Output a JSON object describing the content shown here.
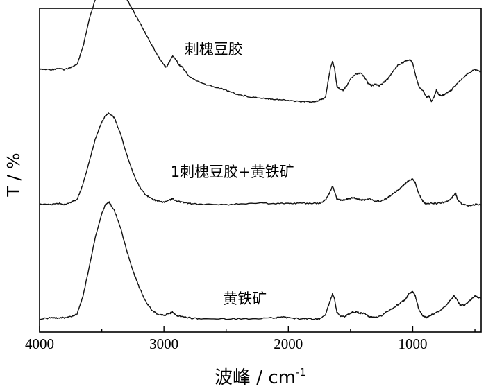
{
  "chart_data": {
    "type": "line",
    "xlabel": "波峰 / cm",
    "xlabel_superscript": "-1",
    "ylabel": "T / %",
    "xlim": [
      4000,
      450
    ],
    "x_reversed": true,
    "xticks": [
      4000,
      3000,
      2000,
      1000
    ],
    "xtick_labels": [
      "4000",
      "3000",
      "2000",
      "1000"
    ],
    "y_tick_labels_shown": false,
    "grid": false,
    "legend": "none",
    "series": [
      {
        "name": "刺槐豆胶",
        "offset": 2.0,
        "points": [
          [
            4000,
            0.18
          ],
          [
            3900,
            0.18
          ],
          [
            3850,
            0.19
          ],
          [
            3800,
            0.18
          ],
          [
            3750,
            0.2
          ],
          [
            3700,
            0.22
          ],
          [
            3650,
            0.38
          ],
          [
            3600,
            0.62
          ],
          [
            3550,
            0.8
          ],
          [
            3500,
            0.94
          ],
          [
            3470,
            1.0
          ],
          [
            3440,
            1.02
          ],
          [
            3400,
            0.98
          ],
          [
            3350,
            0.9
          ],
          [
            3300,
            0.8
          ],
          [
            3250,
            0.7
          ],
          [
            3200,
            0.6
          ],
          [
            3150,
            0.5
          ],
          [
            3100,
            0.4
          ],
          [
            3050,
            0.3
          ],
          [
            3000,
            0.22
          ],
          [
            2980,
            0.2
          ],
          [
            2950,
            0.26
          ],
          [
            2930,
            0.3
          ],
          [
            2900,
            0.26
          ],
          [
            2880,
            0.22
          ],
          [
            2850,
            0.2
          ],
          [
            2800,
            0.12
          ],
          [
            2700,
            0.06
          ],
          [
            2600,
            0.03
          ],
          [
            2500,
            0.0
          ],
          [
            2400,
            -0.04
          ],
          [
            2300,
            -0.06
          ],
          [
            2200,
            -0.07
          ],
          [
            2100,
            -0.08
          ],
          [
            2000,
            -0.09
          ],
          [
            1900,
            -0.1
          ],
          [
            1800,
            -0.1
          ],
          [
            1750,
            -0.09
          ],
          [
            1700,
            -0.06
          ],
          [
            1680,
            0.08
          ],
          [
            1660,
            0.2
          ],
          [
            1645,
            0.25
          ],
          [
            1630,
            0.2
          ],
          [
            1610,
            0.04
          ],
          [
            1590,
            0.01
          ],
          [
            1560,
            0.0
          ],
          [
            1530,
            0.04
          ],
          [
            1500,
            0.1
          ],
          [
            1460,
            0.14
          ],
          [
            1420,
            0.15
          ],
          [
            1390,
            0.12
          ],
          [
            1360,
            0.06
          ],
          [
            1330,
            0.04
          ],
          [
            1300,
            0.05
          ],
          [
            1270,
            0.04
          ],
          [
            1240,
            0.06
          ],
          [
            1200,
            0.1
          ],
          [
            1160,
            0.16
          ],
          [
            1120,
            0.22
          ],
          [
            1080,
            0.24
          ],
          [
            1050,
            0.26
          ],
          [
            1020,
            0.26
          ],
          [
            1000,
            0.24
          ],
          [
            980,
            0.14
          ],
          [
            950,
            0.03
          ],
          [
            920,
            0.0
          ],
          [
            890,
            -0.06
          ],
          [
            870,
            -0.05
          ],
          [
            850,
            -0.1
          ],
          [
            830,
            -0.06
          ],
          [
            810,
            0.0
          ],
          [
            790,
            -0.04
          ],
          [
            770,
            -0.05
          ],
          [
            750,
            -0.04
          ],
          [
            720,
            -0.02
          ],
          [
            690,
            0.0
          ],
          [
            650,
            0.05
          ],
          [
            600,
            0.1
          ],
          [
            550,
            0.15
          ],
          [
            500,
            0.18
          ],
          [
            450,
            0.16
          ]
        ]
      },
      {
        "name": "1刺槐豆胶+黄铁矿",
        "offset": 1.0,
        "points": [
          [
            4000,
            0.0
          ],
          [
            3900,
            0.0
          ],
          [
            3850,
            0.01
          ],
          [
            3800,
            0.0
          ],
          [
            3750,
            0.02
          ],
          [
            3700,
            0.04
          ],
          [
            3650,
            0.18
          ],
          [
            3600,
            0.38
          ],
          [
            3550,
            0.58
          ],
          [
            3500,
            0.72
          ],
          [
            3470,
            0.78
          ],
          [
            3440,
            0.8
          ],
          [
            3400,
            0.76
          ],
          [
            3350,
            0.62
          ],
          [
            3300,
            0.44
          ],
          [
            3250,
            0.28
          ],
          [
            3200,
            0.16
          ],
          [
            3150,
            0.09
          ],
          [
            3100,
            0.05
          ],
          [
            3050,
            0.03
          ],
          [
            3000,
            0.02
          ],
          [
            2950,
            0.04
          ],
          [
            2930,
            0.05
          ],
          [
            2900,
            0.03
          ],
          [
            2850,
            0.02
          ],
          [
            2800,
            0.01
          ],
          [
            2700,
            0.0
          ],
          [
            2500,
            0.0
          ],
          [
            2300,
            0.01
          ],
          [
            2100,
            0.01
          ],
          [
            2000,
            0.01
          ],
          [
            1900,
            0.01
          ],
          [
            1800,
            0.01
          ],
          [
            1750,
            0.01
          ],
          [
            1700,
            0.04
          ],
          [
            1670,
            0.1
          ],
          [
            1645,
            0.16
          ],
          [
            1630,
            0.12
          ],
          [
            1610,
            0.05
          ],
          [
            1580,
            0.04
          ],
          [
            1550,
            0.04
          ],
          [
            1520,
            0.05
          ],
          [
            1480,
            0.06
          ],
          [
            1450,
            0.05
          ],
          [
            1420,
            0.04
          ],
          [
            1390,
            0.04
          ],
          [
            1350,
            0.05
          ],
          [
            1300,
            0.03
          ],
          [
            1250,
            0.03
          ],
          [
            1200,
            0.06
          ],
          [
            1150,
            0.1
          ],
          [
            1100,
            0.14
          ],
          [
            1060,
            0.18
          ],
          [
            1030,
            0.21
          ],
          [
            1000,
            0.22
          ],
          [
            980,
            0.19
          ],
          [
            950,
            0.09
          ],
          [
            920,
            0.03
          ],
          [
            900,
            0.01
          ],
          [
            850,
            0.01
          ],
          [
            800,
            0.01
          ],
          [
            750,
            0.02
          ],
          [
            700,
            0.04
          ],
          [
            670,
            0.08
          ],
          [
            655,
            0.1
          ],
          [
            640,
            0.04
          ],
          [
            600,
            0.0
          ],
          [
            550,
            -0.01
          ],
          [
            500,
            0.0
          ],
          [
            450,
            0.0
          ]
        ]
      },
      {
        "name": "黄铁矿",
        "offset": 0.0,
        "points": [
          [
            4000,
            0.0
          ],
          [
            3900,
            0.01
          ],
          [
            3850,
            0.01
          ],
          [
            3800,
            0.01
          ],
          [
            3750,
            0.02
          ],
          [
            3700,
            0.04
          ],
          [
            3650,
            0.2
          ],
          [
            3600,
            0.46
          ],
          [
            3550,
            0.72
          ],
          [
            3500,
            0.92
          ],
          [
            3470,
            1.0
          ],
          [
            3440,
            1.02
          ],
          [
            3400,
            0.95
          ],
          [
            3350,
            0.8
          ],
          [
            3300,
            0.6
          ],
          [
            3250,
            0.42
          ],
          [
            3200,
            0.28
          ],
          [
            3150,
            0.16
          ],
          [
            3100,
            0.08
          ],
          [
            3050,
            0.04
          ],
          [
            3000,
            0.03
          ],
          [
            2950,
            0.05
          ],
          [
            2930,
            0.06
          ],
          [
            2900,
            0.03
          ],
          [
            2850,
            0.02
          ],
          [
            2800,
            0.01
          ],
          [
            2700,
            0.0
          ],
          [
            2500,
            0.0
          ],
          [
            2300,
            0.0
          ],
          [
            2100,
            0.01
          ],
          [
            2050,
            0.02
          ],
          [
            2000,
            0.01
          ],
          [
            1900,
            0.0
          ],
          [
            1800,
            0.0
          ],
          [
            1750,
            0.0
          ],
          [
            1700,
            0.04
          ],
          [
            1670,
            0.14
          ],
          [
            1645,
            0.22
          ],
          [
            1630,
            0.18
          ],
          [
            1610,
            0.06
          ],
          [
            1580,
            0.02
          ],
          [
            1550,
            0.02
          ],
          [
            1520,
            0.04
          ],
          [
            1480,
            0.06
          ],
          [
            1450,
            0.06
          ],
          [
            1420,
            0.05
          ],
          [
            1390,
            0.05
          ],
          [
            1350,
            0.02
          ],
          [
            1300,
            0.01
          ],
          [
            1250,
            0.03
          ],
          [
            1200,
            0.07
          ],
          [
            1150,
            0.1
          ],
          [
            1100,
            0.14
          ],
          [
            1060,
            0.17
          ],
          [
            1030,
            0.22
          ],
          [
            1000,
            0.24
          ],
          [
            980,
            0.2
          ],
          [
            950,
            0.08
          ],
          [
            920,
            0.03
          ],
          [
            890,
            0.01
          ],
          [
            860,
            0.03
          ],
          [
            820,
            0.05
          ],
          [
            780,
            0.07
          ],
          [
            740,
            0.11
          ],
          [
            700,
            0.16
          ],
          [
            670,
            0.2
          ],
          [
            650,
            0.18
          ],
          [
            620,
            0.12
          ],
          [
            580,
            0.12
          ],
          [
            540,
            0.16
          ],
          [
            500,
            0.2
          ],
          [
            450,
            0.18
          ]
        ]
      }
    ]
  }
}
